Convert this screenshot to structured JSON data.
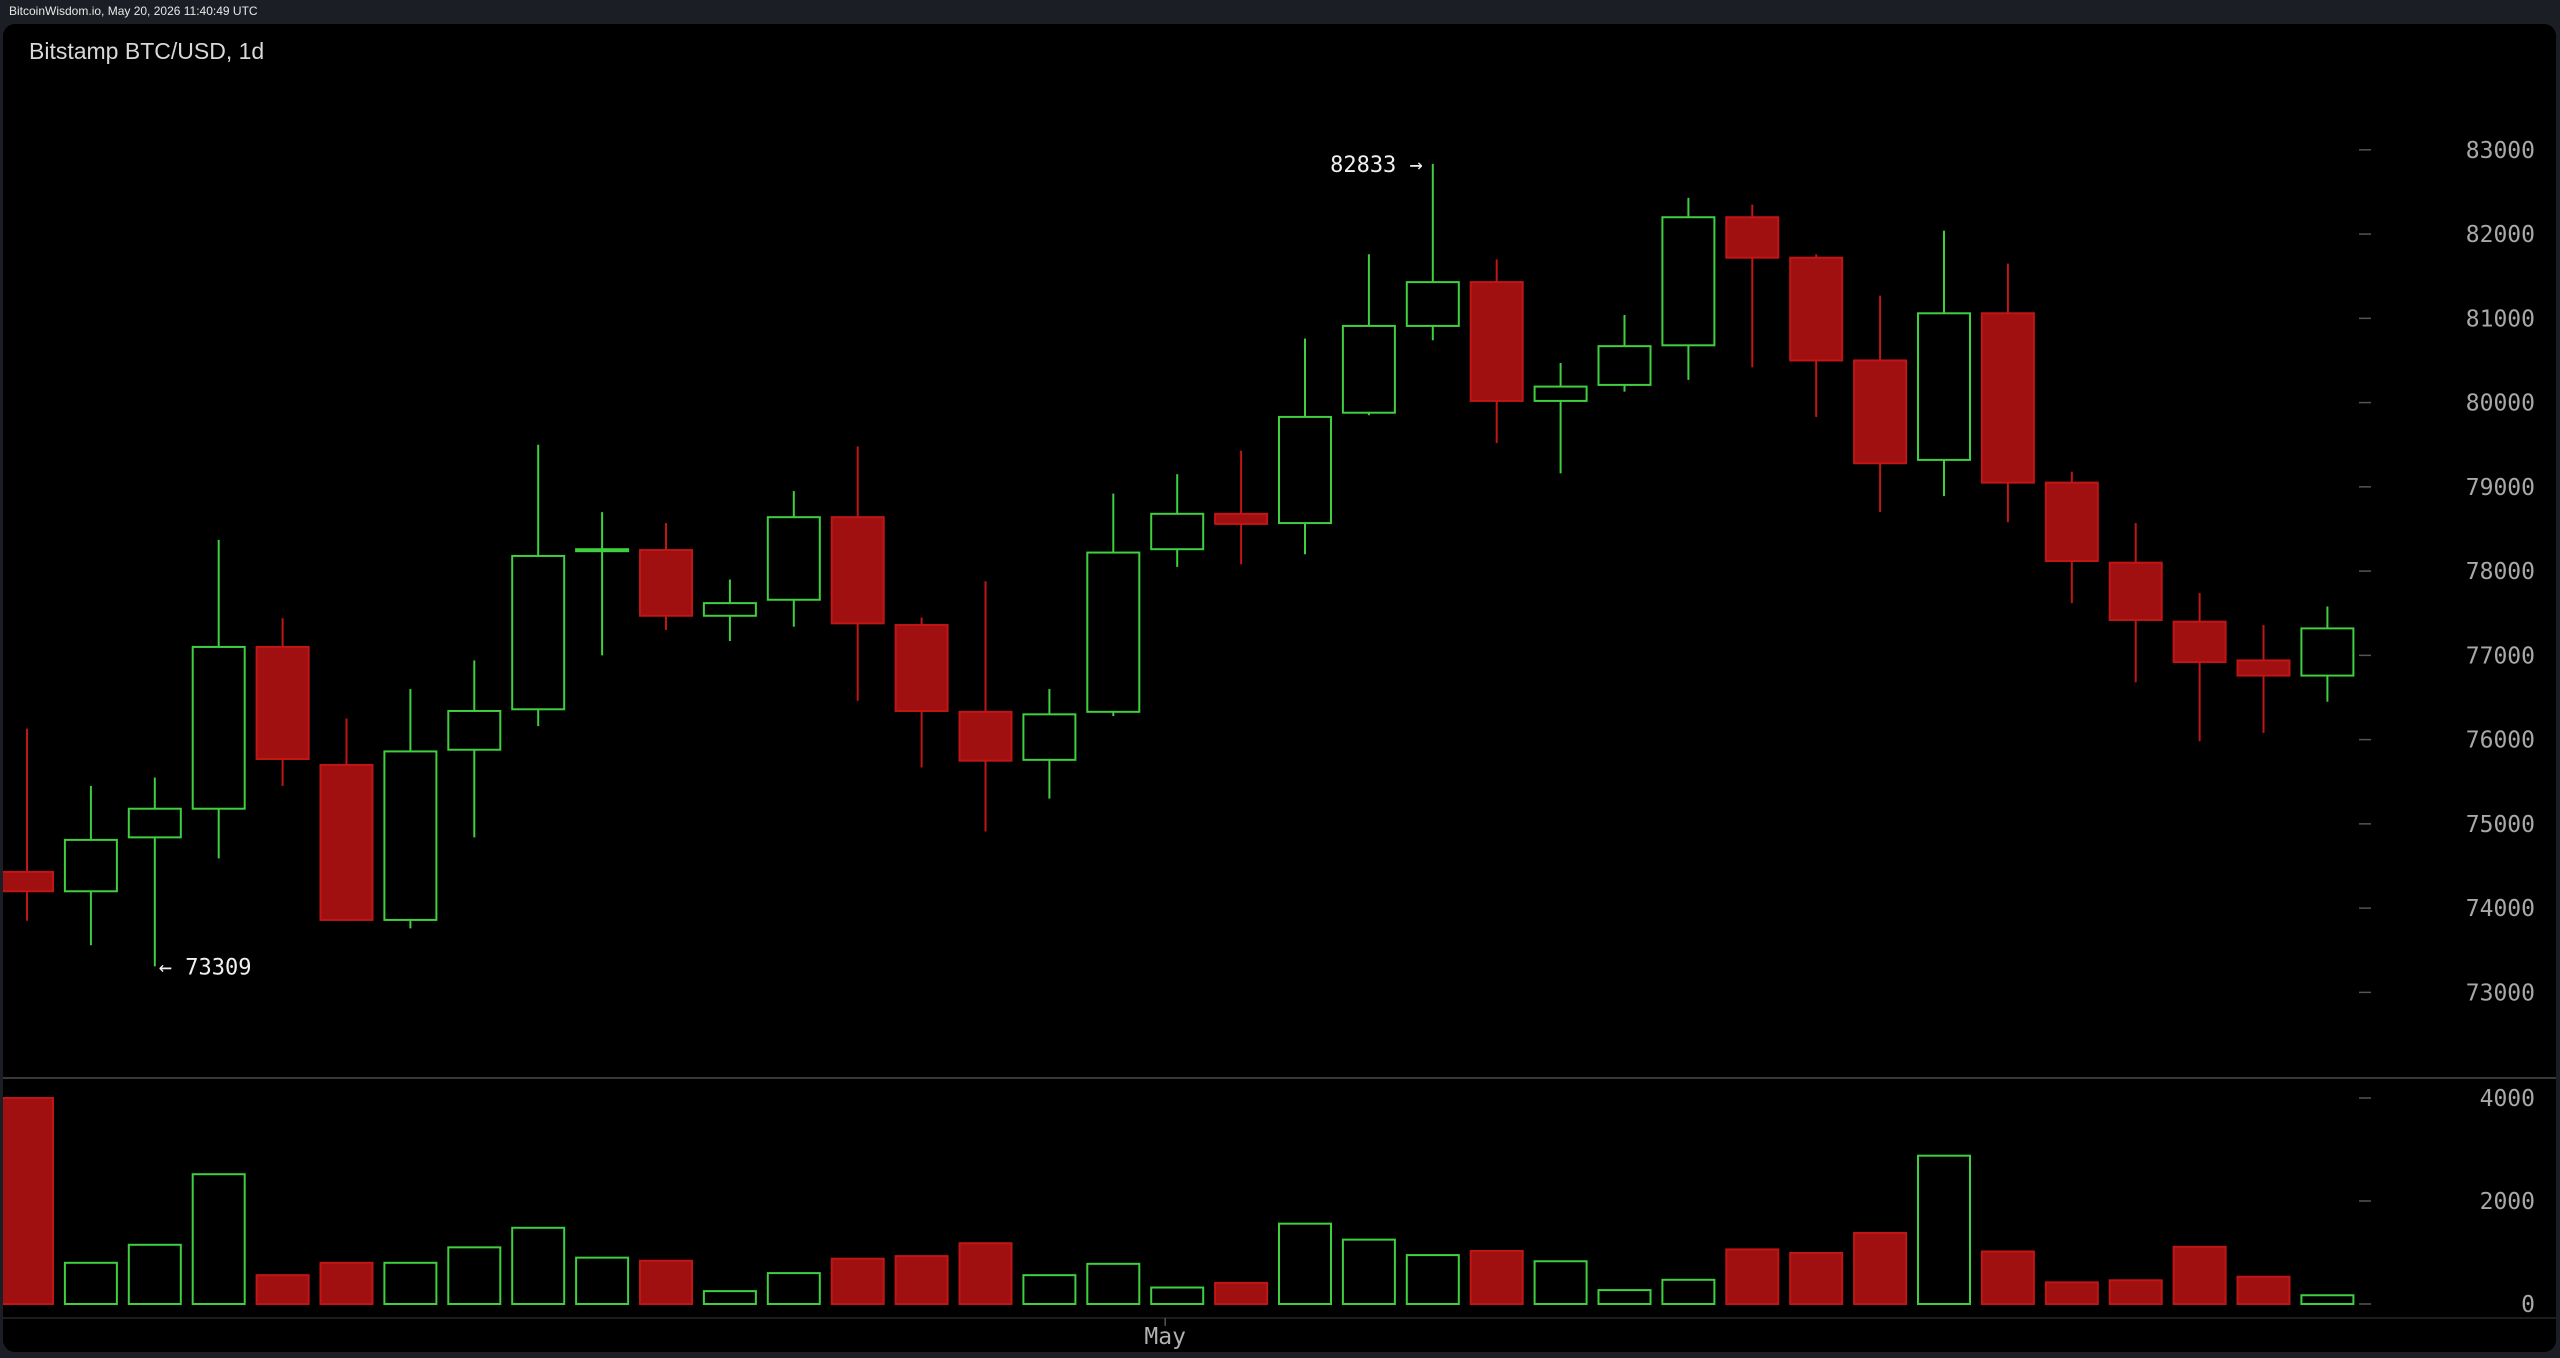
{
  "header": {
    "source_line": "BitcoinWisdom.io, May 20, 2026 11:40:49 UTC"
  },
  "colors": {
    "background": "#000000",
    "up": "#3fcf3f",
    "down": "#a01010",
    "down_border": "#c01616",
    "grid": "#3a3a3a",
    "text": "#d8d8d8"
  },
  "chart_data": {
    "type": "candlestick",
    "title": "Bitstamp BTC/USD, 1d",
    "x_labels": [
      {
        "index": 18,
        "label": "May"
      }
    ],
    "price_axis": {
      "ticks": [
        "73000",
        "74000",
        "75000",
        "76000",
        "77000",
        "78000",
        "79000",
        "80000",
        "81000",
        "82000",
        "83000"
      ],
      "range": [
        72150,
        83900
      ]
    },
    "volume_axis": {
      "ticks": [
        "0",
        "2000",
        "4000"
      ],
      "range": [
        0,
        4000
      ]
    },
    "annotations": {
      "high": {
        "value": 82833,
        "label": "82833 →",
        "index": 22
      },
      "low": {
        "value": 73309,
        "label": "← 73309",
        "index": 2
      }
    },
    "candles": [
      {
        "o": 74430,
        "h": 76130,
        "l": 73850,
        "c": 74200,
        "v": 4000
      },
      {
        "o": 74200,
        "h": 75450,
        "l": 73560,
        "c": 74810,
        "v": 800
      },
      {
        "o": 74840,
        "h": 75550,
        "l": 73309,
        "c": 75180,
        "v": 1150
      },
      {
        "o": 75180,
        "h": 78370,
        "l": 74590,
        "c": 77100,
        "v": 2520
      },
      {
        "o": 77100,
        "h": 77440,
        "l": 75450,
        "c": 75770,
        "v": 560
      },
      {
        "o": 75700,
        "h": 76250,
        "l": 73850,
        "c": 73860,
        "v": 800
      },
      {
        "o": 73860,
        "h": 76600,
        "l": 73760,
        "c": 75860,
        "v": 800
      },
      {
        "o": 75880,
        "h": 76940,
        "l": 74840,
        "c": 76340,
        "v": 1100
      },
      {
        "o": 76360,
        "h": 79500,
        "l": 76160,
        "c": 78180,
        "v": 1480
      },
      {
        "o": 78250,
        "h": 78700,
        "l": 77000,
        "c": 78260,
        "v": 900
      },
      {
        "o": 78250,
        "h": 78570,
        "l": 77300,
        "c": 77470,
        "v": 840
      },
      {
        "o": 77470,
        "h": 77900,
        "l": 77170,
        "c": 77620,
        "v": 250
      },
      {
        "o": 77660,
        "h": 78950,
        "l": 77340,
        "c": 78640,
        "v": 600
      },
      {
        "o": 78640,
        "h": 79480,
        "l": 76460,
        "c": 77380,
        "v": 880
      },
      {
        "o": 77360,
        "h": 77450,
        "l": 75670,
        "c": 76340,
        "v": 930
      },
      {
        "o": 76330,
        "h": 77880,
        "l": 74910,
        "c": 75750,
        "v": 1180
      },
      {
        "o": 75760,
        "h": 76600,
        "l": 75300,
        "c": 76300,
        "v": 560
      },
      {
        "o": 76330,
        "h": 78920,
        "l": 76280,
        "c": 78220,
        "v": 780
      },
      {
        "o": 78260,
        "h": 79150,
        "l": 78050,
        "c": 78680,
        "v": 320
      },
      {
        "o": 78680,
        "h": 79430,
        "l": 78080,
        "c": 78560,
        "v": 410
      },
      {
        "o": 78570,
        "h": 80760,
        "l": 78200,
        "c": 79830,
        "v": 1560
      },
      {
        "o": 79880,
        "h": 81760,
        "l": 79850,
        "c": 80910,
        "v": 1250
      },
      {
        "o": 80910,
        "h": 82833,
        "l": 80740,
        "c": 81430,
        "v": 950
      },
      {
        "o": 81430,
        "h": 81700,
        "l": 79520,
        "c": 80020,
        "v": 1030
      },
      {
        "o": 80020,
        "h": 80470,
        "l": 79160,
        "c": 80190,
        "v": 830
      },
      {
        "o": 80210,
        "h": 81040,
        "l": 80130,
        "c": 80670,
        "v": 270
      },
      {
        "o": 80680,
        "h": 82430,
        "l": 80270,
        "c": 82200,
        "v": 470
      },
      {
        "o": 82200,
        "h": 82350,
        "l": 80420,
        "c": 81720,
        "v": 1060
      },
      {
        "o": 81720,
        "h": 81760,
        "l": 79830,
        "c": 80500,
        "v": 990
      },
      {
        "o": 80500,
        "h": 81270,
        "l": 78700,
        "c": 79280,
        "v": 1380
      },
      {
        "o": 79320,
        "h": 82040,
        "l": 78890,
        "c": 81060,
        "v": 2880
      },
      {
        "o": 81060,
        "h": 81650,
        "l": 78580,
        "c": 79050,
        "v": 1020
      },
      {
        "o": 79050,
        "h": 79180,
        "l": 77620,
        "c": 78120,
        "v": 420
      },
      {
        "o": 78100,
        "h": 78570,
        "l": 76680,
        "c": 77420,
        "v": 460
      },
      {
        "o": 77400,
        "h": 77740,
        "l": 75980,
        "c": 76920,
        "v": 1110
      },
      {
        "o": 76940,
        "h": 77360,
        "l": 76080,
        "c": 76760,
        "v": 530
      },
      {
        "o": 76760,
        "h": 77580,
        "l": 76450,
        "c": 77320,
        "v": 170
      }
    ]
  }
}
